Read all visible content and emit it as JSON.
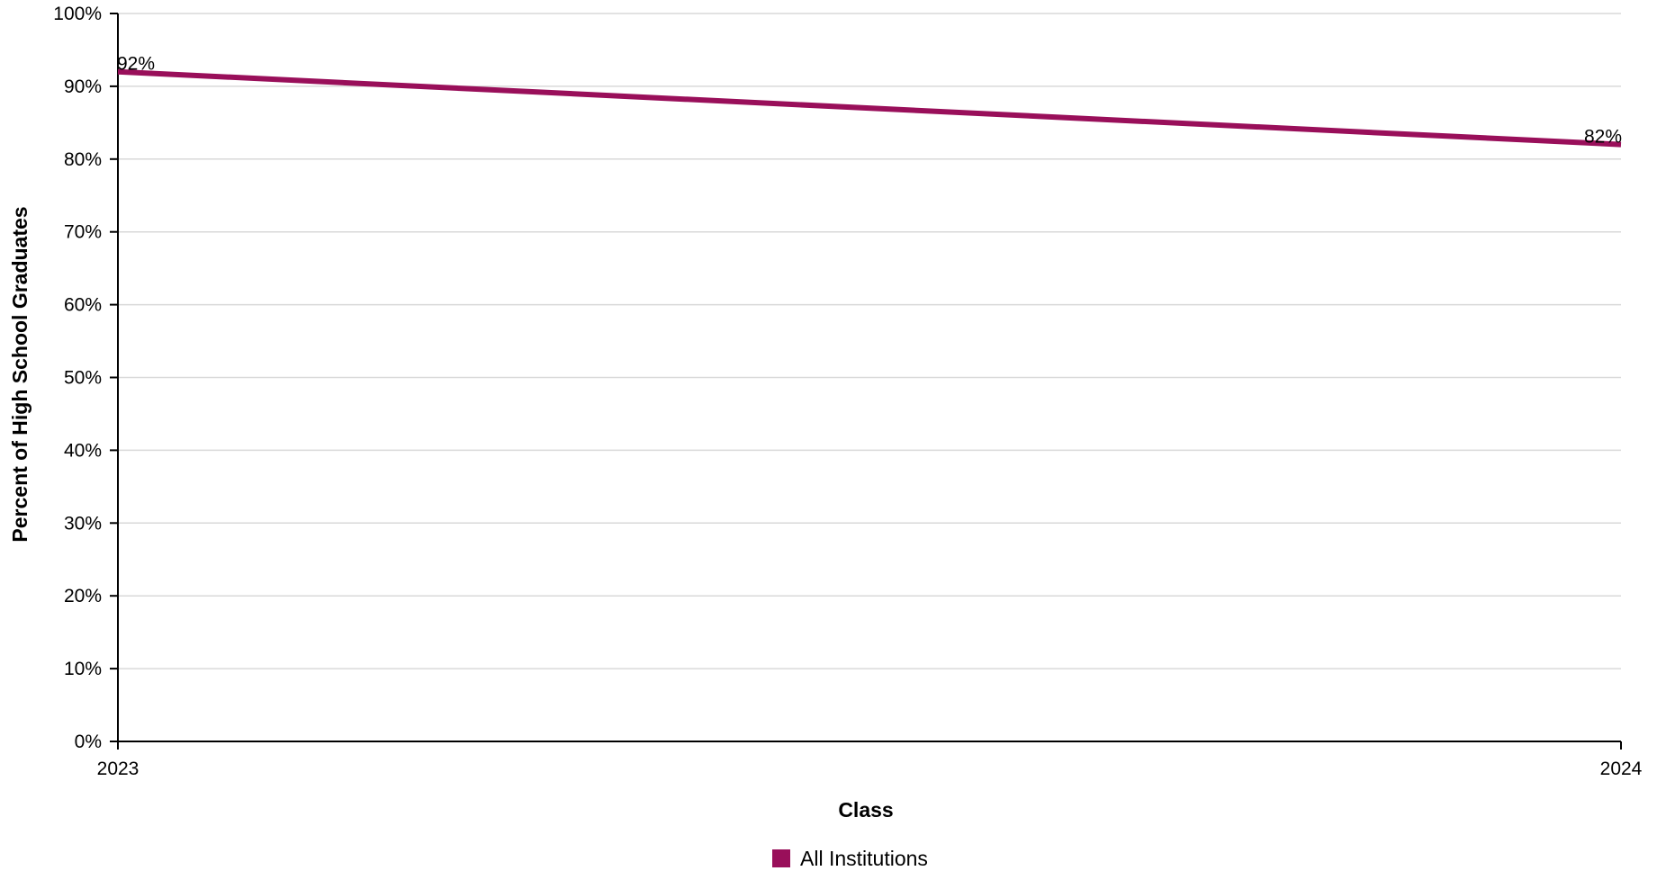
{
  "chart_data": {
    "type": "line",
    "title": "",
    "xlabel": "Class",
    "ylabel": "Percent of High School Graduates",
    "x": [
      "2023",
      "2024"
    ],
    "ylim": [
      0,
      100
    ],
    "y_ticks": [
      0,
      10,
      20,
      30,
      40,
      50,
      60,
      70,
      80,
      90,
      100
    ],
    "y_tick_suffix": "%",
    "grid": true,
    "legend_position": "bottom-center",
    "series": [
      {
        "name": "All Institutions",
        "color": "#990f5a",
        "values": [
          92,
          82
        ],
        "data_labels": [
          "92%",
          "82%"
        ]
      }
    ]
  }
}
